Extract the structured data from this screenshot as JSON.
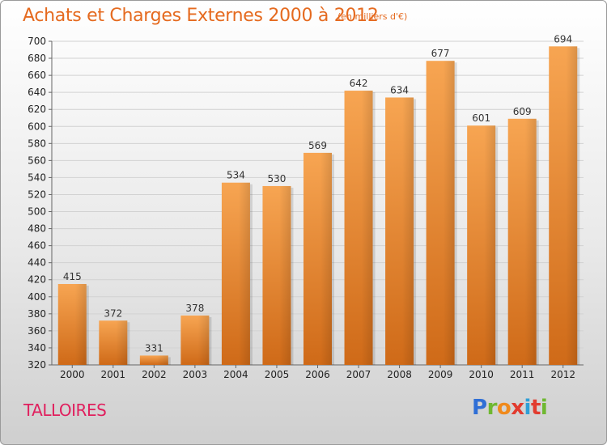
{
  "header": {
    "title": "Achats et Charges Externes 2000 à 2012",
    "unit": "(en milliers d'€)"
  },
  "commune": "TALLOIRES",
  "logo": {
    "letters": [
      "P",
      "r",
      "o",
      "x",
      "i",
      "t",
      "i"
    ],
    "colors": [
      "#2f6fd6",
      "#6fb831",
      "#f08a1c",
      "#e23b2e",
      "#2f9fd6",
      "#e23b2e",
      "#6fb831"
    ]
  },
  "chart_data": {
    "type": "bar",
    "title": "Achats et Charges Externes 2000 à 2012",
    "subtitle": "(en milliers d'€)",
    "categories": [
      "2000",
      "2001",
      "2002",
      "2003",
      "2004",
      "2005",
      "2006",
      "2007",
      "2008",
      "2009",
      "2010",
      "2011",
      "2012"
    ],
    "values": [
      415,
      372,
      331,
      378,
      534,
      530,
      569,
      642,
      634,
      677,
      601,
      609,
      694
    ],
    "ylim": [
      320,
      700
    ],
    "yticks": [
      320,
      340,
      360,
      380,
      400,
      420,
      440,
      460,
      480,
      500,
      520,
      540,
      560,
      580,
      600,
      620,
      640,
      660,
      680,
      700
    ],
    "grid": true,
    "bar_color": "#f29a3c"
  }
}
